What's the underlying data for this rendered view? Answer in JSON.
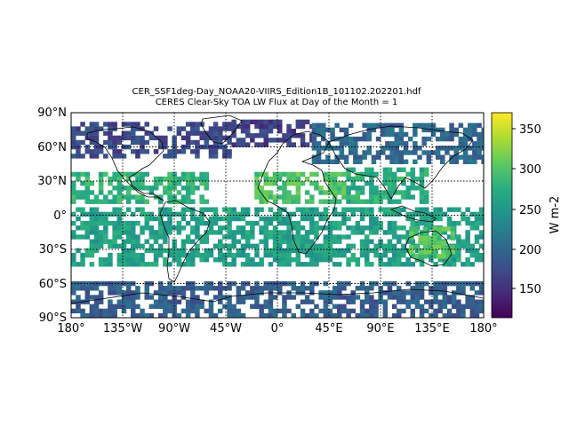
{
  "title_line1": "CER_SSF1deg-Day_NOAA20-VIIRS_Edition1B_101102.202201.hdf",
  "title_line2": "CERES Clear-Sky TOA LW Flux at Day of the Month = 1",
  "lat_labels": [
    "90°N",
    "60°N",
    "30°N",
    "0°",
    "30°S",
    "60°S",
    "90°S"
  ],
  "lon_labels": [
    "180°",
    "135°W",
    "90°W",
    "45°W",
    "0°",
    "45°E",
    "90°E",
    "135°E",
    "180°"
  ],
  "colorbar": {
    "label": "W m-2",
    "ticks": [
      "350",
      "300",
      "250",
      "200",
      "150"
    ],
    "range": [
      112,
      372
    ],
    "colormap": "viridis"
  },
  "chart_data": {
    "type": "heatmap",
    "projection": "plate-carree",
    "xlim": [
      -180,
      180
    ],
    "ylim": [
      -90,
      90
    ],
    "grid": true,
    "coastlines": true,
    "regions": [
      {
        "lon": [
          -180,
          180
        ],
        "lat": [
          -90,
          -58
        ],
        "value": 190
      },
      {
        "lon": [
          -180,
          -40
        ],
        "lat": [
          50,
          80
        ],
        "value": 170
      },
      {
        "lon": [
          -40,
          30
        ],
        "lat": [
          60,
          82
        ],
        "value": 160
      },
      {
        "lon": [
          30,
          180
        ],
        "lat": [
          45,
          78
        ],
        "value": 200
      },
      {
        "lon": [
          -20,
          60
        ],
        "lat": [
          10,
          35
        ],
        "value": 300
      },
      {
        "lon": [
          60,
          130
        ],
        "lat": [
          10,
          40
        ],
        "value": 275
      },
      {
        "lon": [
          -180,
          -60
        ],
        "lat": [
          10,
          35
        ],
        "value": 280
      },
      {
        "lon": [
          -180,
          180
        ],
        "lat": [
          -45,
          5
        ],
        "value": 260
      },
      {
        "lon": [
          115,
          155
        ],
        "lat": [
          -38,
          -12
        ],
        "value": 300
      }
    ]
  }
}
